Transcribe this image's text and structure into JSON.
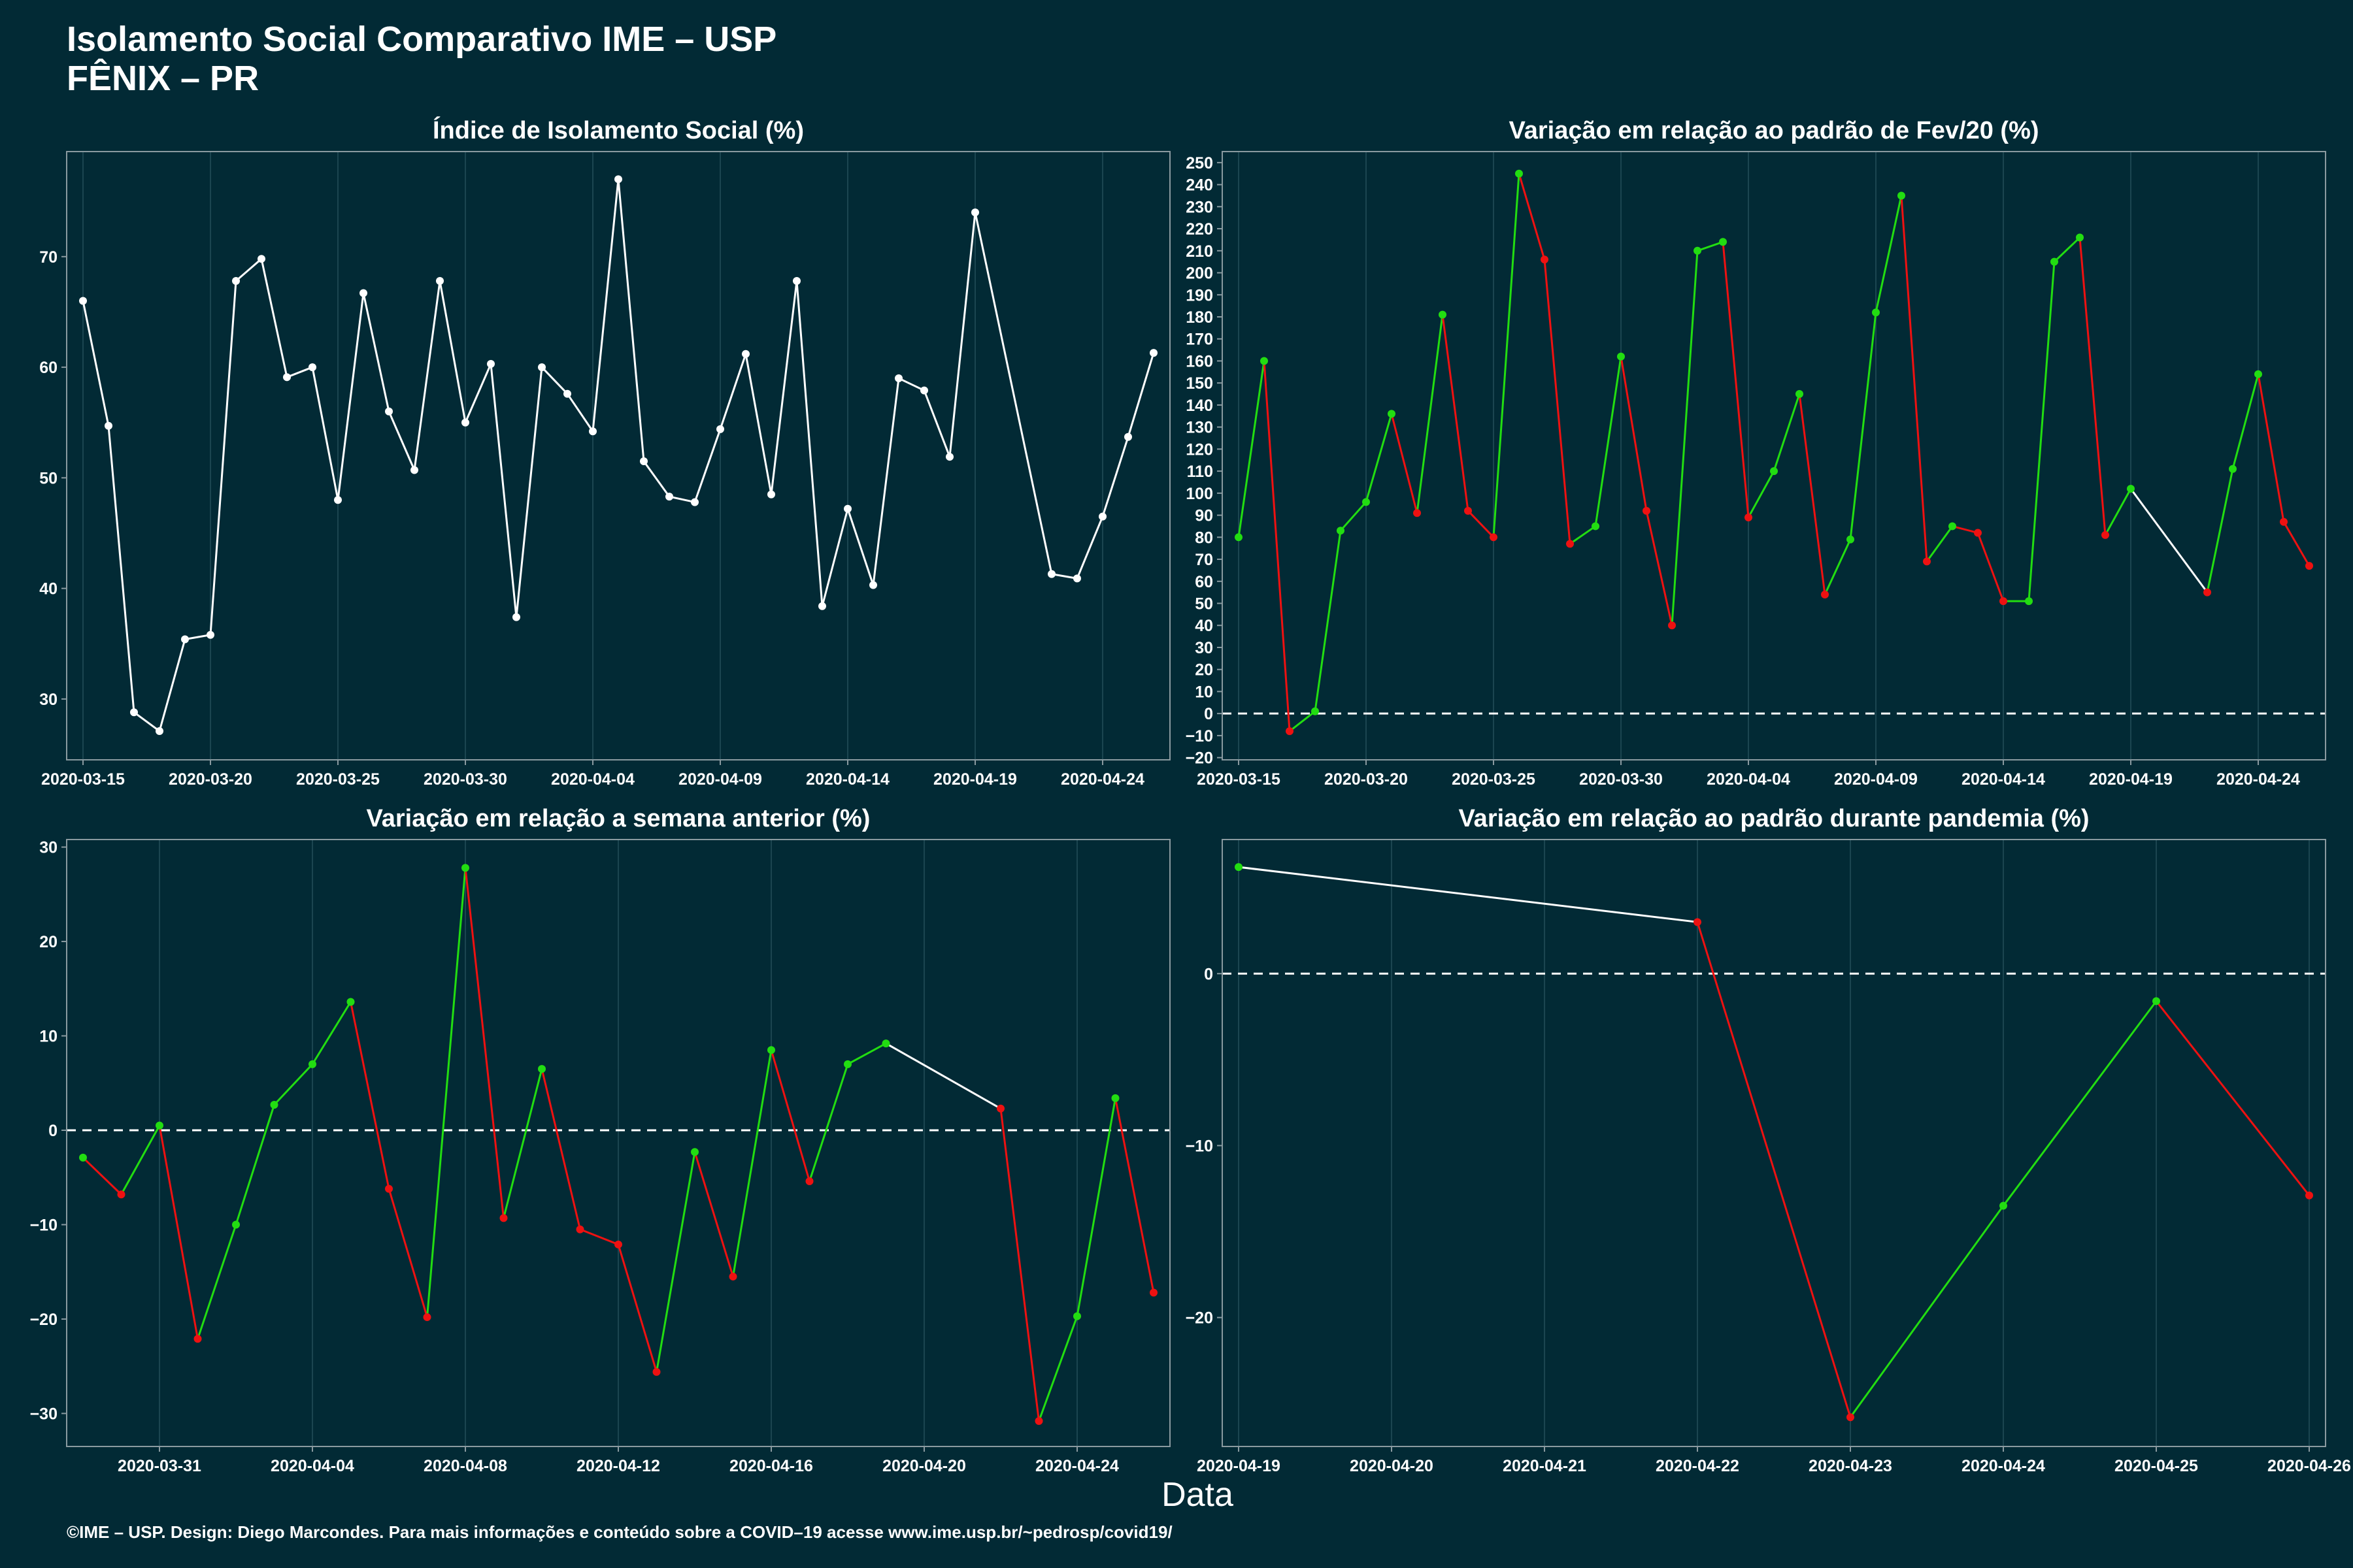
{
  "header": {
    "title": "Isolamento Social Comparativo IME – USP",
    "subtitle": "FÊNIX – PR"
  },
  "xlabel": "Data",
  "footer": "©IME – USP. Design: Diego Marcondes. Para mais informações e conteúdo sobre a COVID–19 acesse www.ime.usp.br/~pedrosp/covid19/",
  "colors": {
    "background": "#022a35",
    "line": "#ffffff",
    "positive": "#22dd11",
    "negative": "#ee1111"
  },
  "chart_data": [
    {
      "type": "line",
      "title": "Índice de Isolamento Social (%)",
      "x": [
        "2020-03-15",
        "2020-03-16",
        "2020-03-17",
        "2020-03-18",
        "2020-03-19",
        "2020-03-20",
        "2020-03-21",
        "2020-03-22",
        "2020-03-23",
        "2020-03-24",
        "2020-03-25",
        "2020-03-26",
        "2020-03-27",
        "2020-03-28",
        "2020-03-29",
        "2020-03-30",
        "2020-03-31",
        "2020-04-01",
        "2020-04-02",
        "2020-04-03",
        "2020-04-04",
        "2020-04-05",
        "2020-04-06",
        "2020-04-07",
        "2020-04-08",
        "2020-04-09",
        "2020-04-10",
        "2020-04-11",
        "2020-04-12",
        "2020-04-13",
        "2020-04-14",
        "2020-04-15",
        "2020-04-16",
        "2020-04-17",
        "2020-04-18",
        "2020-04-19",
        "2020-04-22",
        "2020-04-23",
        "2020-04-24",
        "2020-04-25",
        "2020-04-26"
      ],
      "values": [
        66.0,
        54.7,
        28.8,
        27.1,
        35.4,
        35.8,
        67.8,
        69.8,
        59.1,
        60.0,
        48.0,
        66.7,
        56.0,
        50.7,
        67.8,
        55.0,
        60.3,
        37.4,
        60.0,
        57.6,
        54.2,
        77.0,
        51.5,
        48.3,
        47.8,
        54.4,
        61.2,
        48.5,
        67.8,
        38.4,
        47.2,
        40.3,
        59.0,
        57.9,
        51.9,
        74.0,
        41.3,
        40.9,
        46.5,
        53.7,
        61.3
      ],
      "ylim": [
        24.5,
        79.5
      ],
      "yticks": [
        30,
        40,
        50,
        60,
        70
      ],
      "xticks": [
        "2020-03-15",
        "2020-03-20",
        "2020-03-25",
        "2020-03-30",
        "2020-04-04",
        "2020-04-09",
        "2020-04-14",
        "2020-04-19",
        "2020-04-24"
      ]
    },
    {
      "type": "line",
      "title": "Variação em relação ao padrão de Fev/20 (%)",
      "x": [
        "2020-03-15",
        "2020-03-16",
        "2020-03-17",
        "2020-03-18",
        "2020-03-19",
        "2020-03-20",
        "2020-03-21",
        "2020-03-22",
        "2020-03-23",
        "2020-03-24",
        "2020-03-25",
        "2020-03-26",
        "2020-03-27",
        "2020-03-28",
        "2020-03-29",
        "2020-03-30",
        "2020-03-31",
        "2020-04-01",
        "2020-04-02",
        "2020-04-03",
        "2020-04-04",
        "2020-04-05",
        "2020-04-06",
        "2020-04-07",
        "2020-04-08",
        "2020-04-09",
        "2020-04-10",
        "2020-04-11",
        "2020-04-12",
        "2020-04-13",
        "2020-04-14",
        "2020-04-15",
        "2020-04-16",
        "2020-04-17",
        "2020-04-18",
        "2020-04-19",
        "2020-04-22",
        "2020-04-23",
        "2020-04-24",
        "2020-04-25",
        "2020-04-26"
      ],
      "values": [
        80,
        160,
        -8,
        1,
        83,
        96,
        136,
        91,
        181,
        92,
        80,
        245,
        206,
        77,
        85,
        162,
        92,
        40,
        210,
        214,
        89,
        110,
        145,
        54,
        79,
        182,
        235,
        69,
        85,
        82,
        51,
        51,
        205,
        216,
        81,
        102,
        55,
        111,
        154,
        87,
        67
      ],
      "ylim": [
        -21,
        255
      ],
      "yticks": [
        -20,
        -10,
        0,
        10,
        20,
        30,
        40,
        50,
        60,
        70,
        80,
        90,
        100,
        110,
        120,
        130,
        140,
        150,
        160,
        170,
        180,
        190,
        200,
        210,
        220,
        230,
        240,
        250
      ],
      "xticks": [
        "2020-03-15",
        "2020-03-20",
        "2020-03-25",
        "2020-03-30",
        "2020-04-04",
        "2020-04-09",
        "2020-04-14",
        "2020-04-19",
        "2020-04-24"
      ],
      "reference_line": 0
    },
    {
      "type": "line",
      "title": "Variação em relação a semana anterior (%)",
      "x": [
        "2020-03-29",
        "2020-03-30",
        "2020-03-31",
        "2020-04-01",
        "2020-04-02",
        "2020-04-03",
        "2020-04-04",
        "2020-04-05",
        "2020-04-06",
        "2020-04-07",
        "2020-04-08",
        "2020-04-09",
        "2020-04-10",
        "2020-04-11",
        "2020-04-12",
        "2020-04-13",
        "2020-04-14",
        "2020-04-15",
        "2020-04-16",
        "2020-04-17",
        "2020-04-18",
        "2020-04-19",
        "2020-04-22",
        "2020-04-23",
        "2020-04-24",
        "2020-04-25",
        "2020-04-26"
      ],
      "values": [
        -2.9,
        -6.8,
        0.5,
        -22.1,
        -10.0,
        2.7,
        7.0,
        13.6,
        -6.2,
        -19.8,
        27.8,
        -9.3,
        6.5,
        -10.5,
        -12.1,
        -25.6,
        -2.3,
        -15.5,
        8.5,
        -5.4,
        7.0,
        9.2,
        2.3,
        -30.8,
        -19.7,
        3.4,
        -17.2
      ],
      "ylim": [
        -33.5,
        30.8
      ],
      "yticks": [
        -30,
        -20,
        -10,
        0,
        10,
        20,
        30
      ],
      "xticks": [
        "2020-03-31",
        "2020-04-04",
        "2020-04-08",
        "2020-04-12",
        "2020-04-16",
        "2020-04-20",
        "2020-04-24"
      ],
      "reference_line": 0
    },
    {
      "type": "line",
      "title": "Variação em relação ao padrão durante pandemia (%)",
      "x": [
        "2020-04-19",
        "2020-04-22",
        "2020-04-23",
        "2020-04-24",
        "2020-04-25",
        "2020-04-26"
      ],
      "values": [
        6.2,
        3.0,
        -25.8,
        -13.5,
        -1.6,
        -12.9
      ],
      "ylim": [
        -27.5,
        7.8
      ],
      "yticks": [
        -20,
        -10,
        0
      ],
      "xticks": [
        "2020-04-19",
        "2020-04-20",
        "2020-04-21",
        "2020-04-22",
        "2020-04-23",
        "2020-04-24",
        "2020-04-25",
        "2020-04-26"
      ],
      "reference_line": 0
    }
  ]
}
